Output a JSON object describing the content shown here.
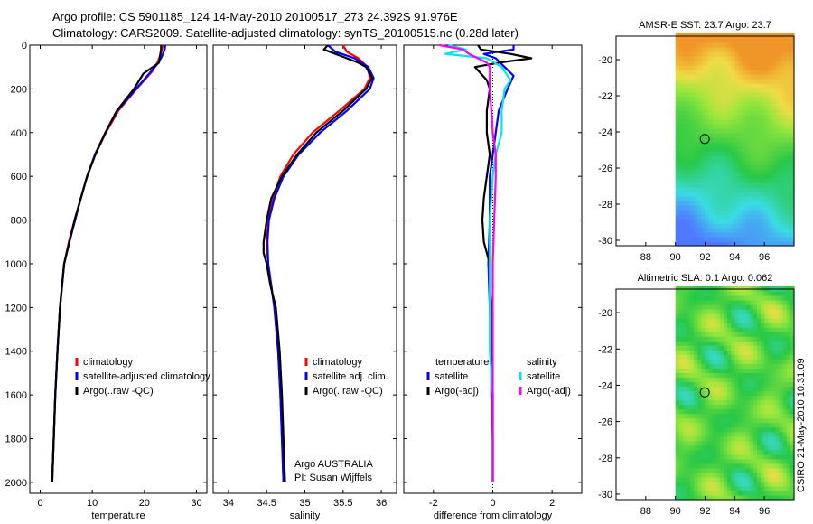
{
  "header": {
    "line1": "Argo profile: CS 5901185_124 14-May-2010 20100517_273 24.392S 91.976E",
    "line2": "Climatology: CARS2009. Satellite-adjusted climatology: synTS_20100515.nc (0.28d later)"
  },
  "signature": "CSIRO 21-May-2010 10:31:09",
  "colors": {
    "climatology": "#ff0000",
    "satellite": "#0000ff",
    "argo": "#000000",
    "cyan": "#00e5ee",
    "magenta": "#ff00ff"
  },
  "chart_data": [
    {
      "type": "line",
      "id": "temperature",
      "xlabel": "temperature",
      "xlim": [
        -2,
        32
      ],
      "xticks": [
        0,
        10,
        20,
        30
      ],
      "ylim": [
        2050,
        0
      ],
      "yticks": [
        0,
        200,
        400,
        600,
        800,
        1000,
        1200,
        1400,
        1600,
        1800,
        2000
      ],
      "legend": [
        "climatology",
        "satellite-adjusted climatology",
        "Argo(..raw -QC)"
      ],
      "series": [
        {
          "name": "climatology",
          "color": "#ff0000",
          "depth": [
            0,
            20,
            50,
            80,
            120,
            200,
            300,
            400,
            500,
            600,
            700,
            800,
            900,
            1000,
            1200,
            1400,
            1600,
            1800,
            2000
          ],
          "values": [
            23.5,
            23.4,
            23.0,
            22.5,
            21.5,
            18.5,
            15.0,
            12.6,
            10.6,
            9.0,
            7.8,
            6.6,
            5.5,
            4.6,
            3.8,
            3.3,
            2.9,
            2.6,
            2.3
          ]
        },
        {
          "name": "satellite-adjusted climatology",
          "color": "#0000ff",
          "depth": [
            0,
            20,
            50,
            80,
            120,
            200,
            300,
            400,
            500,
            600,
            700,
            800,
            900,
            1000,
            1200,
            1400,
            1600,
            1800,
            2000
          ],
          "values": [
            24.0,
            23.9,
            23.4,
            22.7,
            21.3,
            18.4,
            14.8,
            12.5,
            10.5,
            9.0,
            7.8,
            6.7,
            5.6,
            4.6,
            3.8,
            3.3,
            2.9,
            2.6,
            2.3
          ]
        },
        {
          "name": "Argo(..raw -QC)",
          "color": "#000000",
          "depth": [
            0,
            20,
            50,
            80,
            110,
            130,
            200,
            300,
            400,
            500,
            600,
            700,
            800,
            900,
            1000,
            1200,
            1400,
            1600,
            1800,
            2000
          ],
          "values": [
            23.2,
            23.2,
            23.0,
            22.8,
            21.0,
            19.8,
            18.0,
            14.7,
            12.5,
            10.6,
            9.0,
            7.8,
            6.6,
            5.6,
            4.6,
            3.8,
            3.3,
            2.9,
            2.6,
            2.3
          ]
        }
      ]
    },
    {
      "type": "line",
      "id": "salinity",
      "xlabel": "salinity",
      "xlim": [
        33.8,
        36.2
      ],
      "xticks": [
        34,
        34.5,
        35,
        35.5,
        36
      ],
      "xtick_labels": [
        "34",
        "34.5",
        "35",
        "35.5",
        "36"
      ],
      "ylim": [
        2050,
        0
      ],
      "legend": [
        "climatology",
        "satellite adj. clim.",
        "Argo(..raw -QC)"
      ],
      "annotation": [
        "Argo AUSTRALIA",
        "PI: Susan Wijffels"
      ],
      "series": [
        {
          "name": "climatology",
          "color": "#ff0000",
          "depth": [
            0,
            30,
            60,
            100,
            150,
            200,
            300,
            400,
            500,
            600,
            700,
            800,
            900,
            1000,
            1100,
            1200,
            1400,
            1600,
            1800,
            2000
          ],
          "values": [
            35.5,
            35.55,
            35.7,
            35.82,
            35.85,
            35.78,
            35.45,
            35.1,
            34.85,
            34.68,
            34.58,
            34.52,
            34.5,
            34.52,
            34.56,
            34.6,
            34.65,
            34.68,
            34.7,
            34.72
          ]
        },
        {
          "name": "satellite adj. clim.",
          "color": "#0000ff",
          "depth": [
            0,
            30,
            60,
            100,
            150,
            200,
            300,
            400,
            500,
            600,
            700,
            800,
            900,
            1000,
            1100,
            1200,
            1400,
            1600,
            1800,
            2000
          ],
          "values": [
            35.3,
            35.4,
            35.65,
            35.83,
            35.9,
            35.85,
            35.55,
            35.2,
            34.92,
            34.72,
            34.6,
            34.53,
            34.51,
            34.52,
            34.56,
            34.6,
            34.65,
            34.68,
            34.7,
            34.72
          ]
        },
        {
          "name": "Argo(..raw -QC)",
          "color": "#000000",
          "depth": [
            0,
            20,
            40,
            60,
            80,
            100,
            150,
            200,
            300,
            400,
            500,
            600,
            700,
            800,
            900,
            950,
            1000,
            1100,
            1200,
            1400,
            1600,
            1800,
            2000
          ],
          "values": [
            35.3,
            35.25,
            35.4,
            35.55,
            35.7,
            35.8,
            35.88,
            35.8,
            35.5,
            35.15,
            34.9,
            34.7,
            34.56,
            34.5,
            34.46,
            34.46,
            34.5,
            34.55,
            34.62,
            34.67,
            34.7,
            34.72,
            34.74
          ]
        }
      ]
    },
    {
      "type": "line",
      "id": "difference",
      "xlabel": "difference from climatology",
      "xlim": [
        -3,
        3
      ],
      "xticks": [
        -2,
        0,
        2
      ],
      "ylim": [
        2050,
        0
      ],
      "legend_temperature_title": "temperature",
      "legend_salinity_title": "salinity",
      "legend_temperature": [
        "satellite",
        "Argo(-adj)"
      ],
      "legend_salinity": [
        "satellite",
        "Argo(-adj)"
      ],
      "series": [
        {
          "name": "temperature satellite",
          "color": "#0000ff",
          "depth": [
            0,
            20,
            40,
            60,
            100,
            140,
            200,
            300,
            400,
            500,
            600,
            800,
            1000,
            1200,
            1400,
            1600,
            1800,
            2000
          ],
          "values": [
            0.7,
            0.7,
            -0.3,
            0.1,
            0.4,
            0.7,
            0.5,
            0.2,
            0.1,
            0.0,
            -0.1,
            -0.1,
            -0.15,
            -0.1,
            -0.05,
            -0.05,
            0.0,
            0.0
          ]
        },
        {
          "name": "temperature Argo(-adj)",
          "color": "#000000",
          "depth": [
            0,
            20,
            40,
            60,
            80,
            100,
            130,
            160,
            200,
            300,
            400,
            500,
            600,
            700,
            800,
            900,
            950,
            1000,
            1100,
            1200,
            1400,
            1600,
            1800,
            2000
          ],
          "values": [
            -0.5,
            -0.4,
            0.6,
            1.3,
            0.2,
            -0.6,
            -0.4,
            -0.2,
            -0.1,
            -0.2,
            -0.2,
            -0.1,
            -0.2,
            -0.3,
            -0.35,
            -0.3,
            -0.2,
            -0.1,
            -0.1,
            -0.05,
            -0.05,
            0.0,
            0.0,
            0.0
          ]
        },
        {
          "name": "salinity satellite",
          "color": "#00e5ee",
          "depth": [
            0,
            20,
            40,
            60,
            100,
            160,
            200,
            300,
            400,
            500,
            600,
            800,
            1000,
            1200,
            1400,
            1600,
            1800,
            2000
          ],
          "values": [
            -1.5,
            -0.9,
            -1.6,
            -0.2,
            0.3,
            0.6,
            0.4,
            0.3,
            0.3,
            0.1,
            0.0,
            -0.1,
            -0.1,
            -0.1,
            -0.1,
            0.0,
            0.0,
            0.0
          ]
        },
        {
          "name": "salinity Argo(-adj)",
          "color": "#ff00ff",
          "depth": [
            0,
            20,
            40,
            60,
            80,
            100,
            200,
            300,
            400,
            500,
            600,
            800,
            1000,
            1200,
            1400,
            1600,
            1800,
            2000
          ],
          "values": [
            -1.8,
            -1.0,
            -0.8,
            -0.5,
            -0.2,
            -0.1,
            -0.1,
            -0.05,
            0.0,
            0.1,
            0.1,
            0.05,
            0.0,
            0.0,
            0.0,
            0.0,
            0.0,
            0.0
          ]
        }
      ]
    },
    {
      "type": "heatmap",
      "id": "sst-map",
      "title": "AMSR-E SST: 23.7 Argo: 23.7",
      "xlim": [
        86,
        98
      ],
      "ylim": [
        -30.3,
        -18.7
      ],
      "xticks": [
        88,
        90,
        92,
        94,
        96
      ],
      "yticks": [
        -20,
        -22,
        -24,
        -26,
        -28,
        -30
      ],
      "data_xmin": 90,
      "argo_lon": 91.98,
      "argo_lat": -24.39,
      "field": "sst"
    },
    {
      "type": "heatmap",
      "id": "sla-map",
      "title": "Altimetric SLA: 0.1 Argo: 0.062",
      "xlim": [
        86,
        98
      ],
      "ylim": [
        -30.3,
        -18.7
      ],
      "xticks": [
        88,
        90,
        92,
        94,
        96
      ],
      "yticks": [
        -20,
        -22,
        -24,
        -26,
        -28,
        -30
      ],
      "data_xmin": 90,
      "argo_lon": 91.98,
      "argo_lat": -24.39,
      "field": "sla"
    }
  ]
}
